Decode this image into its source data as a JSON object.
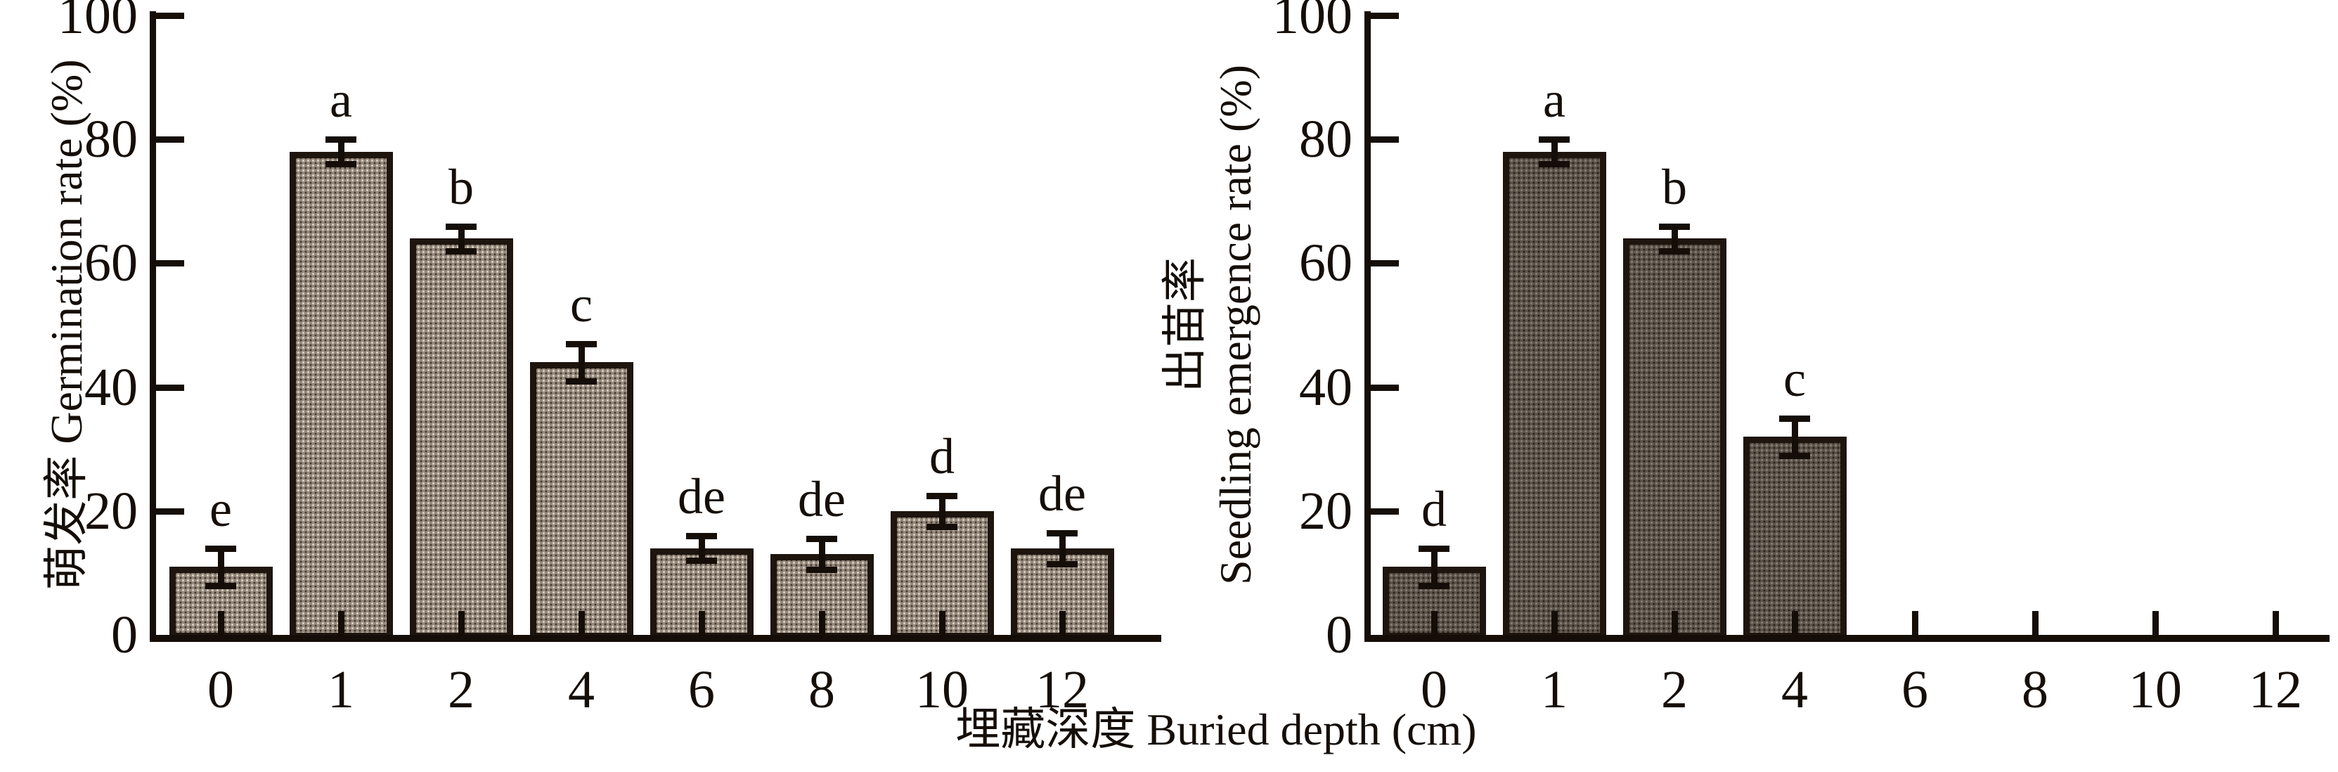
{
  "figure": {
    "background": "#ffffff",
    "text_color": "#150e08",
    "x_axis_label": "埋藏深度 Buried depth (cm)",
    "categories": [
      "0",
      "1",
      "2",
      "4",
      "6",
      "8",
      "10",
      "12"
    ]
  },
  "chart_data": [
    {
      "type": "bar",
      "panel": "left",
      "title": "",
      "ylabel": "萌发率 Germination rate (%)",
      "ylabel_lines": [
        "萌发率 Germination rate (%)"
      ],
      "xlabel": "埋藏深度 Buried depth (cm)",
      "categories": [
        "0",
        "1",
        "2",
        "4",
        "6",
        "8",
        "10",
        "12"
      ],
      "values": [
        11,
        78,
        64,
        44,
        14,
        13,
        20,
        14
      ],
      "errors": [
        3,
        2,
        2,
        3,
        2,
        2.5,
        2.5,
        2.5
      ],
      "sig_letters": [
        "e",
        "a",
        "b",
        "c",
        "de",
        "de",
        "d",
        "de"
      ],
      "yticks": [
        "0",
        "20",
        "40",
        "60",
        "80",
        "100"
      ],
      "ylim": [
        0,
        100
      ],
      "grid": "off",
      "legend": "none",
      "bar_fill": "#96897c",
      "bar_fleck_light": "#d9d3c7",
      "bar_fleck_dark": "#433a31",
      "bar_border": "#1d150e"
    },
    {
      "type": "bar",
      "panel": "right",
      "title": "",
      "ylabel": "出苗率 Seedling emergence rate (%)",
      "ylabel_lines": [
        "出苗率",
        "Seedling emergence rate (%)"
      ],
      "xlabel": "埋藏深度 Buried depth (cm)",
      "categories": [
        "0",
        "1",
        "2",
        "4",
        "6",
        "8",
        "10",
        "12"
      ],
      "values": [
        11,
        78,
        64,
        32,
        0,
        0,
        0,
        0
      ],
      "errors": [
        3,
        2,
        2,
        3,
        0,
        0,
        0,
        0
      ],
      "sig_letters": [
        "d",
        "a",
        "b",
        "c",
        "",
        "",
        "",
        ""
      ],
      "yticks": [
        "0",
        "20",
        "40",
        "60",
        "80",
        "100"
      ],
      "ylim": [
        0,
        100
      ],
      "grid": "off",
      "legend": "none",
      "bar_fill": "#5d544b",
      "bar_fleck_light": "#8b8177",
      "bar_fleck_dark": "#2a231c",
      "bar_border": "#1d150e"
    }
  ]
}
